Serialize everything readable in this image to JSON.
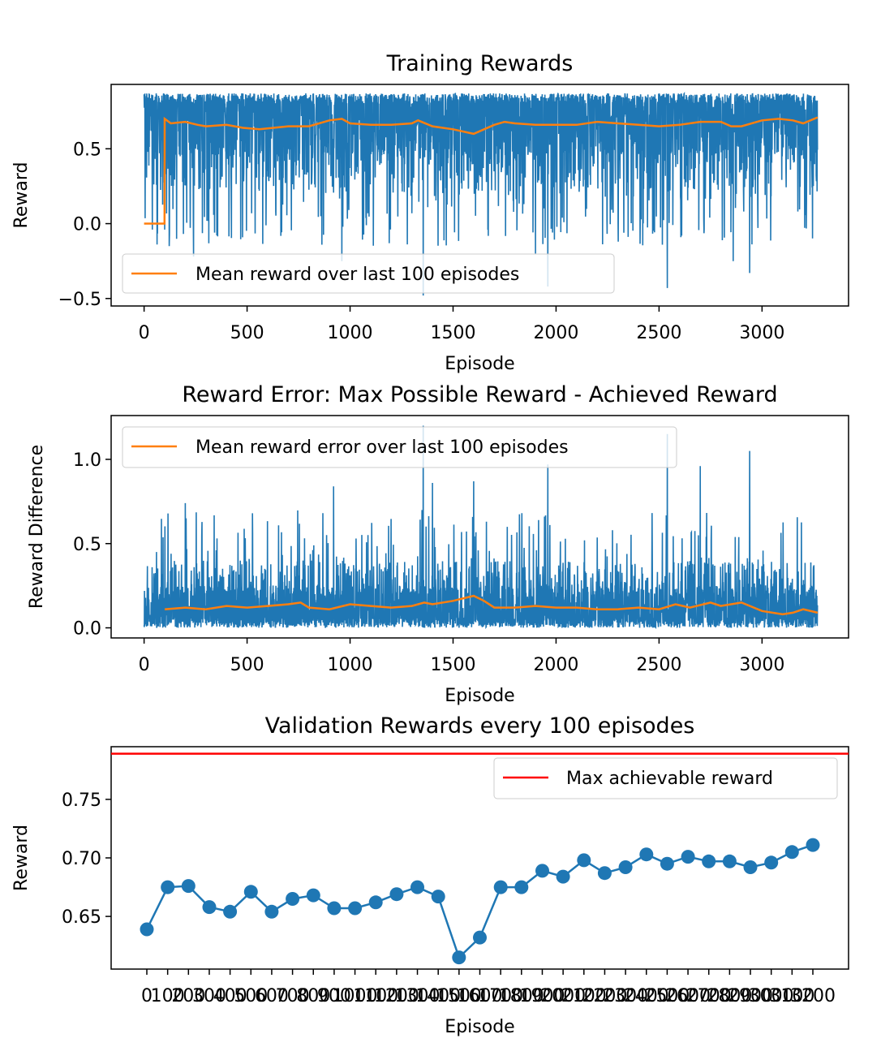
{
  "chart_data": [
    {
      "type": "line",
      "title": "Training Rewards",
      "xlabel": "Episode",
      "ylabel": "Reward",
      "xlim": [
        -160,
        3420
      ],
      "ylim": [
        -0.55,
        0.93
      ],
      "xticks": [
        0,
        500,
        1000,
        1500,
        2000,
        2500,
        3000
      ],
      "xtick_labels": [
        "0",
        "500",
        "1000",
        "1500",
        "2000",
        "2500",
        "3000"
      ],
      "yticks": [
        -0.5,
        0.0,
        0.5
      ],
      "ytick_labels": [
        "−0.5",
        "0.0",
        "0.5"
      ],
      "grid": false,
      "legend_position": "lower-left",
      "legend": [
        "Mean reward over last 100 episodes"
      ],
      "n_episodes": 3270,
      "series": [
        {
          "name": "Reward per episode",
          "color": "#1f77b4",
          "description": "noisy per-episode reward mostly between 0.3 and 0.87, dips as low as -0.48",
          "band_high": 0.87,
          "band_low_typical": 0.4,
          "notable_dips": [
            [
              40,
              -0.04
            ],
            [
              100,
              -0.04
            ],
            [
              240,
              -0.22
            ],
            [
              960,
              -0.25
            ],
            [
              1355,
              -0.48
            ],
            [
              1900,
              -0.2
            ],
            [
              1960,
              -0.42
            ],
            [
              2540,
              -0.43
            ],
            [
              2860,
              -0.25
            ],
            [
              2940,
              -0.33
            ]
          ]
        },
        {
          "name": "Mean reward over last 100 episodes",
          "color": "#ff7f0e",
          "x": [
            0,
            99,
            100,
            130,
            200,
            260,
            300,
            400,
            480,
            560,
            700,
            800,
            900,
            960,
            1000,
            1100,
            1200,
            1300,
            1330,
            1400,
            1500,
            1600,
            1700,
            1750,
            1800,
            1900,
            2000,
            2100,
            2200,
            2300,
            2400,
            2500,
            2600,
            2700,
            2800,
            2850,
            2900,
            3000,
            3080,
            3150,
            3200,
            3270
          ],
          "y": [
            0.0,
            0.0,
            0.7,
            0.67,
            0.68,
            0.66,
            0.65,
            0.66,
            0.64,
            0.63,
            0.65,
            0.65,
            0.69,
            0.7,
            0.67,
            0.66,
            0.66,
            0.67,
            0.69,
            0.65,
            0.63,
            0.6,
            0.66,
            0.68,
            0.67,
            0.66,
            0.66,
            0.66,
            0.68,
            0.67,
            0.66,
            0.65,
            0.66,
            0.68,
            0.68,
            0.65,
            0.65,
            0.69,
            0.7,
            0.69,
            0.67,
            0.71
          ]
        }
      ]
    },
    {
      "type": "line",
      "title": "Reward Error: Max Possible Reward - Achieved Reward",
      "xlabel": "Episode",
      "ylabel": "Reward Difference",
      "xlim": [
        -160,
        3420
      ],
      "ylim": [
        -0.06,
        1.26
      ],
      "xticks": [
        0,
        500,
        1000,
        1500,
        2000,
        2500,
        3000
      ],
      "xtick_labels": [
        "0",
        "500",
        "1000",
        "1500",
        "2000",
        "2500",
        "3000"
      ],
      "yticks": [
        0.0,
        0.5,
        1.0
      ],
      "ytick_labels": [
        "0.0",
        "0.5",
        "1.0"
      ],
      "grid": false,
      "legend_position": "upper-left",
      "legend": [
        "Mean reward error over last 100 episodes"
      ],
      "series": [
        {
          "name": "Reward error per episode",
          "color": "#1f77b4",
          "description": "noisy per-episode error mostly between 0 and 0.35, spikes up to 1.2",
          "band_high_typical": 0.3,
          "notable_spikes": [
            [
              60,
              0.45
            ],
            [
              200,
              0.74
            ],
            [
              1355,
              1.2
            ],
            [
              1960,
              0.97
            ],
            [
              2540,
              1.15
            ],
            [
              2700,
              0.96
            ],
            [
              2940,
              1.05
            ],
            [
              920,
              0.84
            ],
            [
              1400,
              0.86
            ],
            [
              1600,
              0.87
            ]
          ]
        },
        {
          "name": "Mean reward error over last 100 episodes",
          "color": "#ff7f0e",
          "x": [
            100,
            200,
            300,
            400,
            500,
            600,
            700,
            760,
            800,
            900,
            1000,
            1100,
            1200,
            1300,
            1360,
            1400,
            1500,
            1600,
            1650,
            1700,
            1800,
            1900,
            2000,
            2100,
            2200,
            2300,
            2400,
            2500,
            2580,
            2650,
            2750,
            2800,
            2900,
            3000,
            3100,
            3150,
            3200,
            3270
          ],
          "y": [
            0.11,
            0.12,
            0.11,
            0.13,
            0.12,
            0.13,
            0.14,
            0.15,
            0.12,
            0.11,
            0.14,
            0.13,
            0.12,
            0.13,
            0.15,
            0.14,
            0.16,
            0.19,
            0.16,
            0.12,
            0.12,
            0.13,
            0.12,
            0.12,
            0.11,
            0.11,
            0.12,
            0.11,
            0.14,
            0.12,
            0.15,
            0.13,
            0.15,
            0.1,
            0.08,
            0.09,
            0.11,
            0.09
          ]
        }
      ]
    },
    {
      "type": "line",
      "title": "Validation Rewards every 100 episodes",
      "xlabel": "Episode",
      "ylabel": "Reward",
      "ylim": [
        0.605,
        0.795
      ],
      "yticks": [
        0.65,
        0.7,
        0.75
      ],
      "ytick_labels": [
        "0.65",
        "0.70",
        "0.75"
      ],
      "grid": false,
      "legend_position": "upper-right",
      "legend": [
        "Max achievable reward"
      ],
      "categories": [
        "0",
        "100",
        "200",
        "300",
        "400",
        "500",
        "600",
        "700",
        "800",
        "900",
        "1000",
        "1100",
        "1200",
        "1300",
        "1400",
        "1500",
        "1600",
        "1700",
        "1800",
        "1900",
        "2000",
        "2100",
        "2200",
        "2300",
        "2400",
        "2500",
        "2600",
        "2700",
        "2800",
        "2900",
        "3000",
        "3100",
        "3200"
      ],
      "series": [
        {
          "name": "Validation reward",
          "color": "#1f77b4",
          "marker": "circle",
          "values": [
            0.639,
            0.675,
            0.676,
            0.658,
            0.654,
            0.671,
            0.654,
            0.665,
            0.668,
            0.657,
            0.657,
            0.662,
            0.669,
            0.675,
            0.667,
            0.615,
            0.632,
            0.675,
            0.675,
            0.689,
            0.684,
            0.698,
            0.687,
            0.692,
            0.703,
            0.695,
            0.701,
            0.697,
            0.697,
            0.692,
            0.696,
            0.705,
            0.711
          ]
        },
        {
          "name": "Max achievable reward",
          "color": "#ff0000",
          "type": "hline",
          "value": 0.789
        }
      ]
    }
  ]
}
